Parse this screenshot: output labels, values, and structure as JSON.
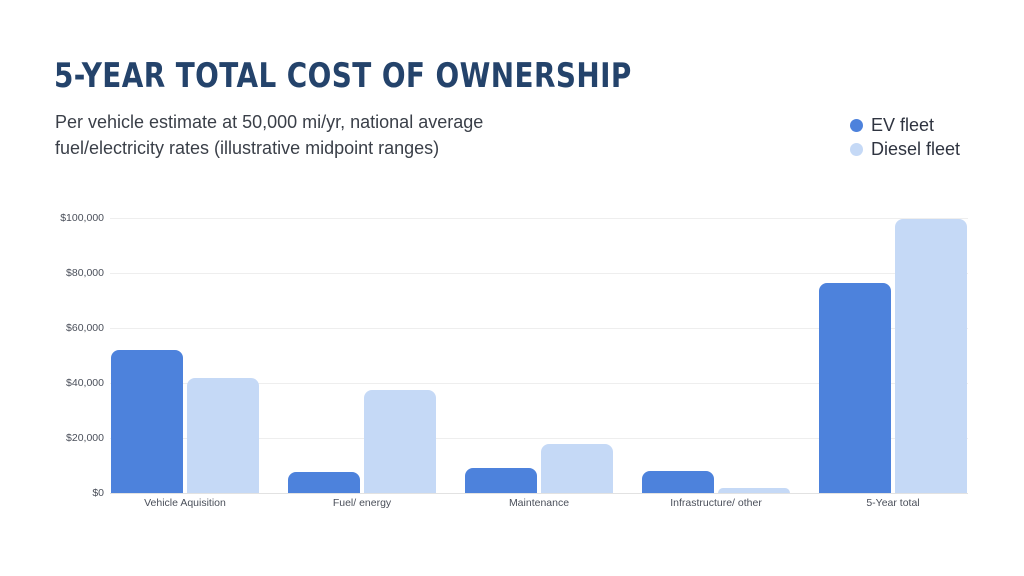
{
  "header": {
    "title": "5-YEAR TOTAL COST OF OWNERSHIP",
    "subtitle": "Per vehicle estimate at 50,000 mi/yr, national average fuel/electricity rates (illustrative midpoint ranges)"
  },
  "legend": [
    {
      "label": "EV fleet",
      "color": "#4d82dc"
    },
    {
      "label": "Diesel fleet",
      "color": "#c5d9f6"
    }
  ],
  "colors": {
    "title": "#24436b",
    "ev": "#4d82dc",
    "diesel": "#c5d9f6"
  },
  "chart_data": {
    "type": "bar",
    "title": "5-YEAR TOTAL COST OF OWNERSHIP",
    "subtitle": "Per vehicle estimate at 50,000 mi/yr, national average fuel/electricity rates (illustrative midpoint ranges)",
    "categories": [
      "Vehicle Aquisition",
      "Fuel/ energy",
      "Maintenance",
      "Infrastructure/ other",
      "5-Year total"
    ],
    "series": [
      {
        "name": "EV fleet",
        "color": "#4d82dc",
        "values": [
          52000,
          7500,
          9000,
          8000,
          76500
        ]
      },
      {
        "name": "Diesel fleet",
        "color": "#c5d9f6",
        "values": [
          42000,
          37500,
          18000,
          2000,
          99500
        ]
      }
    ],
    "xlabel": "",
    "ylabel": "",
    "ylim": [
      0,
      100000
    ],
    "yticks": [
      "$0",
      "$20,000",
      "$40,000",
      "$60,000",
      "$80,000",
      "$100,000"
    ],
    "grid": true,
    "legend_position": "top-right"
  }
}
